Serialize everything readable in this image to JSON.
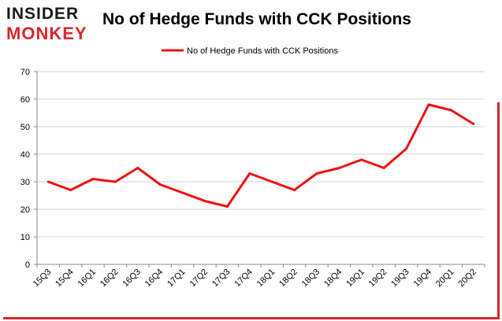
{
  "logo": {
    "top": "INSIDER",
    "bottom": "MONKEY"
  },
  "chart_data": {
    "type": "line",
    "title": "No of Hedge Funds with CCK Positions",
    "xlabel": "",
    "ylabel": "",
    "categories": [
      "15Q3",
      "15Q4",
      "16Q1",
      "16Q2",
      "16Q3",
      "16Q4",
      "17Q1",
      "17Q2",
      "17Q3",
      "17Q4",
      "18Q1",
      "18Q2",
      "18Q3",
      "18Q4",
      "19Q1",
      "19Q2",
      "19Q3",
      "19Q4",
      "20Q1",
      "20Q2"
    ],
    "series": [
      {
        "name": "No of Hedge Funds with CCK Positions",
        "color": "#ee1111",
        "values": [
          30,
          27,
          31,
          30,
          35,
          29,
          26,
          23,
          21,
          33,
          30,
          27,
          33,
          35,
          38,
          35,
          42,
          58,
          56,
          51
        ]
      }
    ],
    "ylim": [
      0,
      70
    ],
    "yticks": [
      0,
      10,
      20,
      30,
      40,
      50,
      60,
      70
    ],
    "grid": true,
    "legend": "top-center"
  }
}
